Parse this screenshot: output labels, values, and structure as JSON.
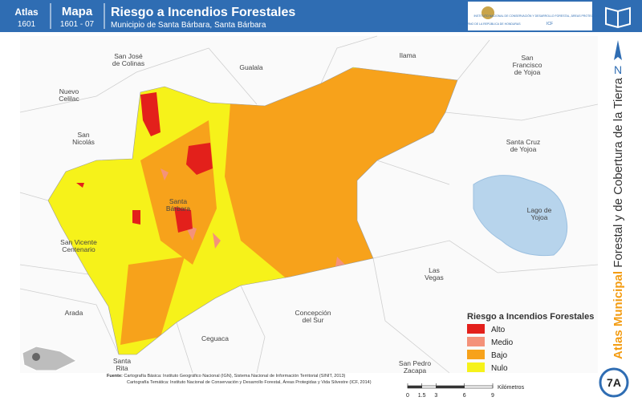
{
  "header": {
    "atlas_label": "Atlas",
    "atlas_number": "1601",
    "map_label": "Mapa",
    "map_number": "1601 - 07",
    "title": "Riesgo a Incendios Forestales",
    "subtitle": "Municipio de Santa Bárbara, Santa Bárbara",
    "logo_left": "GOBIERNO DE LA REPÚBLICA DE HONDURAS",
    "logo_right": "INSTITUTO NACIONAL DE CONSERVACIÓN Y DESARROLLO FORESTAL, ÁREAS PROTEGIDAS Y VIDA SILVESTRE",
    "logo_right_acronym": "ICF"
  },
  "places": [
    "San José",
    "de Colinas",
    "Gualala",
    "Ilama",
    "San",
    "Francisco",
    "de Yojoa",
    "Nuevo",
    "Celilac",
    "San",
    "Nicolás",
    "Santa Cruz",
    "de Yojoa",
    "Santa",
    "Bárbara",
    "Lago de",
    "Yojoa",
    "San Vicente",
    "Centenario",
    "Las",
    "Vegas",
    "Arada",
    "Concepción",
    "del Sur",
    "Ceguaca",
    "Santa",
    "Rita",
    "San Pedro",
    "Zacapa"
  ],
  "legend": {
    "title": "Riesgo a Incendios Forestales",
    "items": [
      {
        "label": "Alto",
        "color": "#e3201b"
      },
      {
        "label": "Medio",
        "color": "#f4927a"
      },
      {
        "label": "Bajo",
        "color": "#f7a21b"
      },
      {
        "label": "Nulo",
        "color": "#f6f21a"
      }
    ]
  },
  "scale": {
    "ticks": [
      0,
      1.5,
      3,
      6,
      9
    ],
    "unit": "Kilómetros"
  },
  "north": "N",
  "side_title": {
    "bold": "Atlas Municipal",
    "rest": " Forestal y de Cobertura de la Tierra"
  },
  "badge": "7A",
  "sources": {
    "label": "Fuente:",
    "line1": " Cartografía Básica: Instituto Geográfico Nacional (IGN), Sistema Nacional de Información Territorial (SINIT, 2013)",
    "line2": "Cartografía Temática: Instituto Nacional de Conservación y Desarrollo Forestal, Áreas Protegidas y Vida Silvestre (ICF, 2014)"
  }
}
